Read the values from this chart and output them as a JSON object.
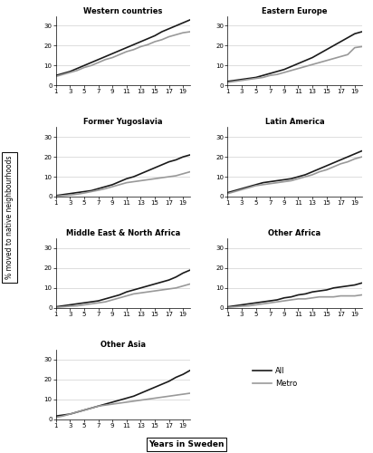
{
  "panels": [
    {
      "title": "Western countries",
      "x": [
        1,
        2,
        3,
        4,
        5,
        6,
        7,
        8,
        9,
        10,
        11,
        12,
        13,
        14,
        15,
        16,
        17,
        18,
        19,
        20
      ],
      "all": [
        5,
        6,
        7,
        8.5,
        10,
        11.5,
        13,
        14.5,
        16,
        17.5,
        19,
        20.5,
        22,
        23.5,
        25,
        27,
        28.5,
        30,
        31.5,
        33
      ],
      "metro": [
        4.5,
        5.5,
        6.5,
        7.5,
        9,
        10,
        11.5,
        13,
        14,
        15.5,
        17,
        18,
        19.5,
        20.5,
        22,
        23,
        24.5,
        25.5,
        26.5,
        27
      ]
    },
    {
      "title": "Eastern Europe",
      "x": [
        1,
        2,
        3,
        4,
        5,
        6,
        7,
        8,
        9,
        10,
        11,
        12,
        13,
        14,
        15,
        16,
        17,
        18,
        19,
        20
      ],
      "all": [
        2,
        2.5,
        3,
        3.5,
        4,
        5,
        6,
        7,
        8,
        9.5,
        11,
        12.5,
        14,
        16,
        18,
        20,
        22,
        24,
        26,
        27
      ],
      "metro": [
        1.5,
        2,
        2.5,
        3,
        3.5,
        4,
        5,
        5.5,
        6.5,
        7.5,
        8.5,
        9.5,
        10.5,
        11.5,
        12.5,
        13.5,
        14.5,
        15.5,
        19,
        19.5
      ]
    },
    {
      "title": "Former Yugoslavia",
      "x": [
        1,
        2,
        3,
        4,
        5,
        6,
        7,
        8,
        9,
        10,
        11,
        12,
        13,
        14,
        15,
        16,
        17,
        18,
        19,
        20
      ],
      "all": [
        0.5,
        1,
        1.5,
        2,
        2.5,
        3,
        4,
        5,
        6,
        7.5,
        9,
        10,
        11.5,
        13,
        14.5,
        16,
        17.5,
        18.5,
        20,
        21
      ],
      "metro": [
        0.2,
        0.5,
        0.8,
        1.2,
        1.8,
        2.5,
        3.2,
        4,
        5,
        6,
        7,
        7.5,
        8,
        8.5,
        9,
        9.5,
        10,
        10.5,
        11.5,
        12.5
      ]
    },
    {
      "title": "Latin America",
      "x": [
        1,
        2,
        3,
        4,
        5,
        6,
        7,
        8,
        9,
        10,
        11,
        12,
        13,
        14,
        15,
        16,
        17,
        18,
        19,
        20
      ],
      "all": [
        2,
        3,
        4,
        5,
        6,
        7,
        7.5,
        8,
        8.5,
        9,
        10,
        11,
        12.5,
        14,
        15.5,
        17,
        18.5,
        20,
        21.5,
        23
      ],
      "metro": [
        1.5,
        2.5,
        3.5,
        4.5,
        5.5,
        6,
        6.5,
        7,
        7.5,
        8,
        9,
        10,
        11,
        12.5,
        13.5,
        15,
        16.5,
        17.5,
        19,
        20
      ]
    },
    {
      "title": "Middle East & North Africa",
      "x": [
        1,
        2,
        3,
        4,
        5,
        6,
        7,
        8,
        9,
        10,
        11,
        12,
        13,
        14,
        15,
        16,
        17,
        18,
        19,
        20
      ],
      "all": [
        0.5,
        1,
        1.5,
        2,
        2.5,
        3,
        3.5,
        4.5,
        5.5,
        6.5,
        8,
        9,
        10,
        11,
        12,
        13,
        14,
        15.5,
        17.5,
        19
      ],
      "metro": [
        0.2,
        0.5,
        0.8,
        1,
        1.5,
        2,
        2.5,
        3,
        4,
        5,
        6,
        7,
        7.5,
        8,
        8.5,
        9,
        9.5,
        10,
        11,
        12
      ]
    },
    {
      "title": "Other Africa",
      "x": [
        1,
        2,
        3,
        4,
        5,
        6,
        7,
        8,
        9,
        10,
        11,
        12,
        13,
        14,
        15,
        16,
        17,
        18,
        19,
        20
      ],
      "all": [
        0.5,
        1,
        1.5,
        2,
        2.5,
        3,
        3.5,
        4,
        5,
        5.5,
        6.5,
        7,
        8,
        8.5,
        9,
        10,
        10.5,
        11,
        11.5,
        12.5
      ],
      "metro": [
        0.2,
        0.5,
        0.8,
        1,
        1.5,
        2,
        2.5,
        3,
        3.5,
        4,
        4.5,
        4.5,
        5,
        5.5,
        5.5,
        5.5,
        6,
        6,
        6,
        6.5
      ]
    },
    {
      "title": "Other Asia",
      "x": [
        1,
        2,
        3,
        4,
        5,
        6,
        7,
        8,
        9,
        10,
        11,
        12,
        13,
        14,
        15,
        16,
        17,
        18,
        19,
        20
      ],
      "all": [
        1.5,
        2,
        2.5,
        3.5,
        4.5,
        5.5,
        6.5,
        7.5,
        8.5,
        9.5,
        10.5,
        11.5,
        13,
        14.5,
        16,
        17.5,
        19,
        21,
        22.5,
        24.5
      ],
      "metro": [
        0.8,
        1.5,
        2.5,
        3.5,
        4.5,
        5.5,
        6.5,
        7,
        7.5,
        8,
        8.5,
        9,
        9.5,
        10,
        10.5,
        11,
        11.5,
        12,
        12.5,
        13
      ]
    }
  ],
  "ylabel": "% moved to native neighbourhoods",
  "xlabel": "Years in Sweden",
  "color_all": "#1a1a1a",
  "color_metro": "#999999",
  "ylim": [
    0,
    35
  ],
  "yticks": [
    0,
    10,
    20,
    30
  ],
  "xticks": [
    1,
    3,
    5,
    7,
    9,
    11,
    13,
    15,
    17,
    19
  ],
  "legend_labels": [
    "All",
    "Metro"
  ],
  "lw_all": 1.2,
  "lw_metro": 1.2,
  "title_fontsize": 6.0,
  "tick_fontsize": 5.0,
  "grid_color": "#d0d0d0",
  "grid_lw": 0.5
}
